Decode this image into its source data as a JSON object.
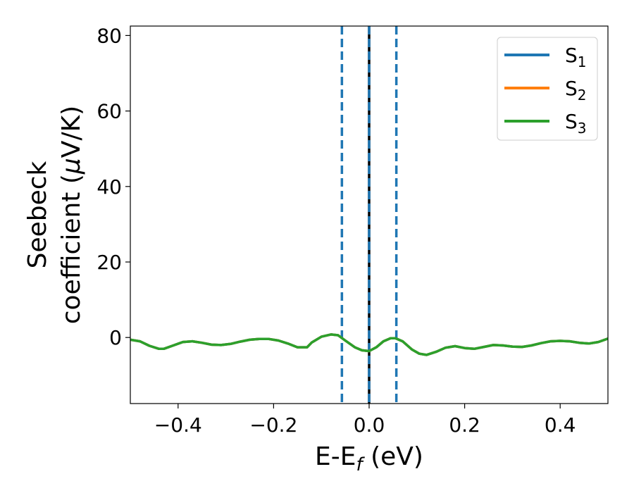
{
  "chart_data": {
    "type": "line",
    "xlabel": {
      "main": "E-E",
      "sub": "f",
      "unit": " (eV)"
    },
    "ylabel": {
      "line1": "Seebeck",
      "line2_pre": "coefficient  (",
      "line2_mu": "μ",
      "line2_post": "V/K)"
    },
    "xlim": [
      -0.5,
      0.5
    ],
    "ylim": [
      -17.5,
      82.5
    ],
    "xticks": [
      -0.4,
      -0.2,
      0.0,
      0.2,
      0.4
    ],
    "xtick_labels": [
      "−0.4",
      "−0.2",
      "0.0",
      "0.2",
      "0.4"
    ],
    "yticks": [
      0,
      20,
      40,
      60,
      80
    ],
    "ytick_labels": [
      "0",
      "20",
      "40",
      "60",
      "80"
    ],
    "grid": false,
    "legend_position": "top-right",
    "x": [
      -0.5,
      -0.48,
      -0.46,
      -0.44,
      -0.43,
      -0.41,
      -0.39,
      -0.37,
      -0.35,
      -0.33,
      -0.31,
      -0.29,
      -0.27,
      -0.25,
      -0.23,
      -0.21,
      -0.19,
      -0.17,
      -0.15,
      -0.13,
      -0.12,
      -0.1,
      -0.08,
      -0.065,
      -0.05,
      -0.03,
      -0.015,
      0.0,
      0.015,
      0.03,
      0.045,
      0.055,
      0.07,
      0.09,
      0.105,
      0.12,
      0.14,
      0.16,
      0.18,
      0.2,
      0.22,
      0.24,
      0.26,
      0.28,
      0.3,
      0.32,
      0.34,
      0.36,
      0.38,
      0.4,
      0.42,
      0.44,
      0.46,
      0.48,
      0.5
    ],
    "series": [
      {
        "name": "S",
        "sub": "1",
        "color": "#1f77b4",
        "values": [
          -0.6,
          -1.0,
          -2.2,
          -3.0,
          -3.0,
          -2.1,
          -1.2,
          -1.0,
          -1.4,
          -1.9,
          -2.0,
          -1.7,
          -1.1,
          -0.6,
          -0.4,
          -0.4,
          -0.8,
          -1.6,
          -2.6,
          -2.6,
          -1.3,
          0.2,
          0.8,
          0.6,
          -0.8,
          -2.6,
          -3.4,
          -3.6,
          -2.6,
          -1.0,
          -0.2,
          -0.2,
          -1.0,
          -3.2,
          -4.3,
          -4.6,
          -3.8,
          -2.7,
          -2.3,
          -2.8,
          -3.0,
          -2.5,
          -2.0,
          -2.1,
          -2.4,
          -2.5,
          -2.1,
          -1.5,
          -1.0,
          -0.9,
          -1.0,
          -1.4,
          -1.6,
          -1.2,
          -0.3
        ]
      },
      {
        "name": "S",
        "sub": "2",
        "color": "#ff7f0e",
        "values": [
          -0.6,
          -1.0,
          -2.2,
          -3.0,
          -3.0,
          -2.1,
          -1.2,
          -1.0,
          -1.4,
          -1.9,
          -2.0,
          -1.7,
          -1.1,
          -0.6,
          -0.4,
          -0.4,
          -0.8,
          -1.6,
          -2.6,
          -2.6,
          -1.3,
          0.2,
          0.8,
          0.6,
          -0.8,
          -2.6,
          -3.4,
          -3.6,
          -2.6,
          -1.0,
          -0.2,
          -0.2,
          -1.0,
          -3.2,
          -4.3,
          -4.6,
          -3.8,
          -2.7,
          -2.3,
          -2.8,
          -3.0,
          -2.5,
          -2.0,
          -2.1,
          -2.4,
          -2.5,
          -2.1,
          -1.5,
          -1.0,
          -0.9,
          -1.0,
          -1.4,
          -1.6,
          -1.2,
          -0.3
        ]
      },
      {
        "name": "S",
        "sub": "3",
        "color": "#2ca02c",
        "values": [
          -0.6,
          -1.0,
          -2.2,
          -3.0,
          -3.0,
          -2.1,
          -1.2,
          -1.0,
          -1.4,
          -1.9,
          -2.0,
          -1.7,
          -1.1,
          -0.6,
          -0.4,
          -0.4,
          -0.8,
          -1.6,
          -2.6,
          -2.6,
          -1.3,
          0.2,
          0.8,
          0.6,
          -0.8,
          -2.6,
          -3.4,
          -3.6,
          -2.6,
          -1.0,
          -0.2,
          -0.2,
          -1.0,
          -3.2,
          -4.3,
          -4.6,
          -3.8,
          -2.7,
          -2.3,
          -2.8,
          -3.0,
          -2.5,
          -2.0,
          -2.1,
          -2.4,
          -2.5,
          -2.1,
          -1.5,
          -1.0,
          -0.9,
          -1.0,
          -1.4,
          -1.6,
          -1.2,
          -0.3
        ]
      }
    ],
    "vlines": [
      {
        "x": -0.057,
        "style": "dashed",
        "color": "#1f77b4"
      },
      {
        "x": 0.0,
        "style": "solid",
        "color": "#000000"
      },
      {
        "x": 0.0,
        "style": "dashed",
        "color": "#1f77b4"
      },
      {
        "x": 0.057,
        "style": "dashed",
        "color": "#1f77b4"
      }
    ]
  }
}
